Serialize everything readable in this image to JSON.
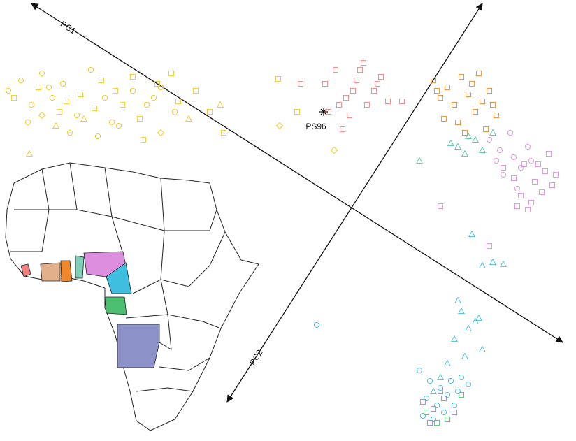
{
  "chart_data": {
    "type": "scatter",
    "xlim": [
      0,
      824
    ],
    "ylim": [
      631,
      0
    ],
    "axis_labels": [
      "PC1",
      "PC2"
    ],
    "annotation": "PS96",
    "series": [
      {
        "color": "#f2c81a",
        "marker": "circle",
        "x": [
          12,
          30,
          45,
          60,
          75,
          90,
          110,
          130,
          150,
          170,
          190,
          210,
          230,
          250,
          40,
          100,
          160,
          220,
          70,
          140
        ],
        "values": [
          130,
          115,
          150,
          105,
          140,
          120,
          165,
          100,
          140,
          180,
          130,
          150,
          125,
          160,
          175,
          190,
          175,
          140,
          125,
          195
        ]
      },
      {
        "color": "#f2c81a",
        "marker": "square",
        "x": [
          20,
          55,
          85,
          115,
          145,
          175,
          200,
          225,
          255,
          280,
          300,
          320,
          165,
          190,
          95,
          245,
          135,
          205,
          398,
          425
        ],
        "values": [
          140,
          125,
          160,
          135,
          115,
          150,
          170,
          120,
          145,
          130,
          160,
          190,
          130,
          110,
          145,
          105,
          155,
          200,
          113,
          160
        ]
      },
      {
        "color": "#f2c81a",
        "marker": "triangle",
        "x": [
          42,
          80,
          120,
          315,
          270
        ],
        "values": [
          220,
          180,
          170,
          150,
          170
        ]
      },
      {
        "color": "#f2c81a",
        "marker": "diamond",
        "x": [
          400,
          478,
          230,
          60
        ],
        "values": [
          180,
          215,
          190,
          165
        ]
      },
      {
        "color": "#f08080",
        "marker": "square",
        "x": [
          430,
          465,
          480,
          495,
          510,
          520,
          535,
          545,
          555,
          470,
          500,
          525,
          490,
          515,
          540,
          505,
          485,
          575
        ],
        "values": [
          120,
          120,
          100,
          140,
          115,
          90,
          130,
          110,
          145,
          160,
          165,
          150,
          185,
          100,
          120,
          130,
          150,
          145
        ]
      },
      {
        "color": "#f0872a",
        "marker": "square",
        "x": [
          620,
          630,
          640,
          650,
          660,
          670,
          680,
          690,
          700,
          710,
          655,
          675,
          695,
          635,
          665,
          685,
          625,
          705
        ],
        "values": [
          115,
          140,
          125,
          150,
          110,
          135,
          160,
          145,
          130,
          165,
          175,
          120,
          185,
          170,
          190,
          105,
          130,
          150
        ]
      },
      {
        "color": "#de8ede",
        "marker": "circle",
        "x": [
          700,
          715,
          730,
          745,
          760,
          720,
          740,
          755,
          710,
          735
        ],
        "values": [
          200,
          215,
          190,
          240,
          230,
          250,
          270,
          210,
          230,
          225
        ]
      },
      {
        "color": "#de8ede",
        "marker": "square",
        "x": [
          720,
          735,
          750,
          765,
          780,
          795,
          745,
          760,
          775,
          790,
          740,
          755,
          770,
          785,
          630,
          700
        ],
        "values": [
          240,
          255,
          235,
          260,
          245,
          250,
          280,
          290,
          275,
          265,
          295,
          300,
          235,
          220,
          295,
          352
        ]
      },
      {
        "color": "#4fc4a4",
        "marker": "triangle",
        "x": [
          655,
          670,
          690,
          705,
          645,
          665,
          600,
          680
        ],
        "values": [
          210,
          195,
          215,
          190,
          205,
          220,
          230,
          200
        ]
      },
      {
        "color": "#3ebfe0",
        "marker": "triangle",
        "x": [
          675,
          705,
          720,
          690,
          655,
          660,
          670,
          680,
          690,
          650,
          640,
          630,
          665,
          685,
          620
        ],
        "values": [
          335,
          375,
          378,
          380,
          430,
          445,
          470,
          460,
          500,
          485,
          520,
          540,
          510,
          455,
          560
        ]
      },
      {
        "color": "#3ebfe0",
        "marker": "circle",
        "x": [
          453,
          600,
          615,
          630,
          645,
          660,
          610,
          625,
          640,
          655,
          670,
          605,
          620,
          635,
          650
        ],
        "values": [
          465,
          530,
          545,
          555,
          545,
          540,
          570,
          580,
          565,
          560,
          550,
          595,
          600,
          590,
          580
        ]
      },
      {
        "color": "#8c8cc8",
        "marker": "square",
        "x": [
          605,
          620,
          635,
          650,
          615,
          630
        ],
        "values": [
          575,
          585,
          570,
          590,
          605,
          560
        ]
      },
      {
        "color": "#4cc070",
        "marker": "square",
        "x": [
          625,
          640,
          610,
          660
        ],
        "values": [
          605,
          600,
          590,
          565
        ]
      }
    ]
  }
}
